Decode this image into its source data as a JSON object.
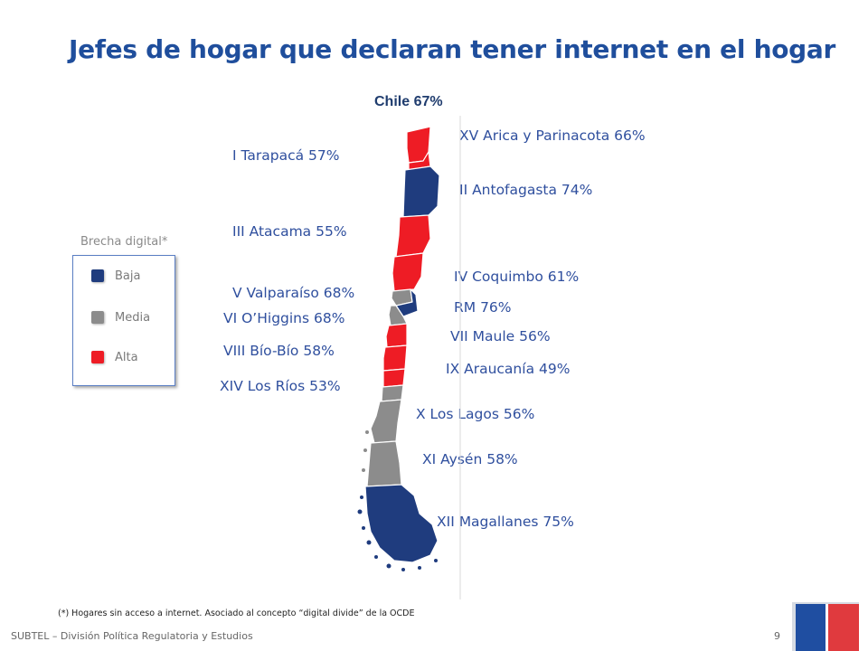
{
  "title": "Jefes de hogar que declaran tener internet en el hogar",
  "national_label": "Chile 67%",
  "legend": {
    "title": "Brecha digital*",
    "items": [
      {
        "label": "Baja",
        "color": "#1f3c7e"
      },
      {
        "label": "Media",
        "color": "#8c8c8c"
      },
      {
        "label": "Alta",
        "color": "#ee1c25"
      }
    ]
  },
  "regions": [
    {
      "id": "xv",
      "label": "XV Arica y Parinacota 66%",
      "gap": "Alta"
    },
    {
      "id": "i",
      "label": "I Tarapacá 57%",
      "gap": "Alta"
    },
    {
      "id": "ii",
      "label": "II Antofagasta 74%",
      "gap": "Baja"
    },
    {
      "id": "iii",
      "label": "III  Atacama 55%",
      "gap": "Alta"
    },
    {
      "id": "iv",
      "label": "IV Coquimbo 61%",
      "gap": "Alta"
    },
    {
      "id": "v",
      "label": "V Valparaíso 68%",
      "gap": "Media"
    },
    {
      "id": "rm",
      "label": "RM  76%",
      "gap": "Baja"
    },
    {
      "id": "vi",
      "label": "VI  O’Higgins 68%",
      "gap": "Media"
    },
    {
      "id": "vii",
      "label": "VII Maule 56%",
      "gap": "Alta"
    },
    {
      "id": "viii",
      "label": "VIII Bío-Bío 58%",
      "gap": "Alta"
    },
    {
      "id": "ix",
      "label": "IX Araucanía 49%",
      "gap": "Alta"
    },
    {
      "id": "xiv",
      "label": "XIV Los Ríos 53%",
      "gap": "Media"
    },
    {
      "id": "x",
      "label": "X Los Lagos 56%",
      "gap": "Media"
    },
    {
      "id": "xi",
      "label": "XI Aysén 58%",
      "gap": "Media"
    },
    {
      "id": "xii",
      "label": "XII Magallanes 75%",
      "gap": "Baja"
    }
  ],
  "footnote": "(*) Hogares sin acceso a internet. Asociado al concepto “digital divide” de la OCDE",
  "footer": "SUBTEL – División Política Regulatoria y Estudios",
  "page_number": "9"
}
